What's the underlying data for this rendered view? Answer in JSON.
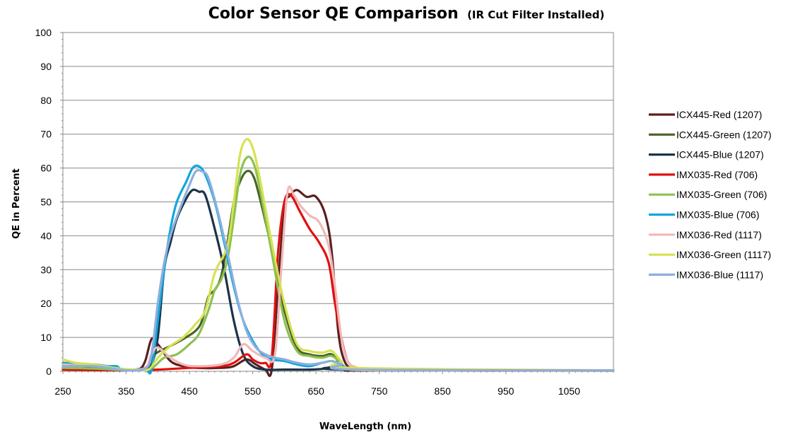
{
  "chart_data": {
    "type": "line",
    "title": "Color Sensor QE Comparison",
    "subtitle": "(IR Cut Filter Installed)",
    "xlabel": "WaveLength  (nm)",
    "ylabel": "QE in Percent",
    "xlim": [
      250,
      1120
    ],
    "ylim": [
      0,
      100
    ],
    "x_ticks": [
      250,
      350,
      450,
      550,
      650,
      750,
      850,
      950,
      1050
    ],
    "y_ticks": [
      0,
      10,
      20,
      30,
      40,
      50,
      60,
      70,
      80,
      90,
      100
    ],
    "grid": "horizontal",
    "legend_position": "right",
    "series": [
      {
        "name": "ICX445-Red (1207)",
        "color": "#5a1f1f",
        "points": [
          [
            250,
            1
          ],
          [
            300,
            0.5
          ],
          [
            350,
            0.3
          ],
          [
            370,
            0.5
          ],
          [
            380,
            3
          ],
          [
            390,
            9.5
          ],
          [
            400,
            8
          ],
          [
            420,
            3
          ],
          [
            440,
            1.5
          ],
          [
            460,
            1
          ],
          [
            500,
            1
          ],
          [
            520,
            1.5
          ],
          [
            540,
            3.5
          ],
          [
            555,
            2
          ],
          [
            570,
            0.5
          ],
          [
            580,
            0.5
          ],
          [
            590,
            25
          ],
          [
            600,
            48
          ],
          [
            610,
            52
          ],
          [
            620,
            53.5
          ],
          [
            635,
            51.5
          ],
          [
            650,
            51.5
          ],
          [
            665,
            46
          ],
          [
            675,
            35
          ],
          [
            685,
            12
          ],
          [
            695,
            3
          ],
          [
            710,
            0.5
          ],
          [
            730,
            0.2
          ],
          [
            1120,
            0.2
          ]
        ]
      },
      {
        "name": "ICX445-Green (1207)",
        "color": "#4a6327",
        "points": [
          [
            250,
            0.5
          ],
          [
            350,
            0.3
          ],
          [
            380,
            1
          ],
          [
            395,
            5
          ],
          [
            420,
            7.5
          ],
          [
            440,
            9.5
          ],
          [
            460,
            12
          ],
          [
            470,
            15
          ],
          [
            480,
            22
          ],
          [
            490,
            24
          ],
          [
            500,
            28
          ],
          [
            510,
            38
          ],
          [
            520,
            50
          ],
          [
            530,
            56
          ],
          [
            540,
            59
          ],
          [
            550,
            58
          ],
          [
            560,
            52
          ],
          [
            580,
            36
          ],
          [
            600,
            18
          ],
          [
            620,
            7
          ],
          [
            640,
            5
          ],
          [
            660,
            4.5
          ],
          [
            675,
            5
          ],
          [
            690,
            2
          ],
          [
            710,
            0.5
          ],
          [
            1120,
            0.2
          ]
        ]
      },
      {
        "name": "ICX445-Blue (1207)",
        "color": "#1c3349",
        "points": [
          [
            250,
            1
          ],
          [
            300,
            1
          ],
          [
            350,
            0.3
          ],
          [
            380,
            1
          ],
          [
            390,
            2
          ],
          [
            400,
            10
          ],
          [
            410,
            30
          ],
          [
            420,
            38
          ],
          [
            430,
            45
          ],
          [
            445,
            51
          ],
          [
            455,
            53.5
          ],
          [
            465,
            53
          ],
          [
            475,
            52
          ],
          [
            490,
            42
          ],
          [
            505,
            30
          ],
          [
            520,
            15
          ],
          [
            535,
            5
          ],
          [
            550,
            1.5
          ],
          [
            570,
            0.5
          ],
          [
            600,
            0.5
          ],
          [
            640,
            0.5
          ],
          [
            660,
            0.7
          ],
          [
            675,
            1.2
          ],
          [
            700,
            0.5
          ],
          [
            1120,
            0.2
          ]
        ]
      },
      {
        "name": "IMX035-Red (706)",
        "color": "#e01010",
        "points": [
          [
            250,
            0.5
          ],
          [
            350,
            0.3
          ],
          [
            400,
            0.5
          ],
          [
            450,
            1
          ],
          [
            500,
            1.5
          ],
          [
            520,
            2.5
          ],
          [
            540,
            5
          ],
          [
            550,
            3.5
          ],
          [
            560,
            2.5
          ],
          [
            570,
            2.5
          ],
          [
            580,
            4
          ],
          [
            590,
            35
          ],
          [
            600,
            50
          ],
          [
            610,
            52
          ],
          [
            625,
            47
          ],
          [
            640,
            42
          ],
          [
            655,
            38
          ],
          [
            670,
            32
          ],
          [
            680,
            20
          ],
          [
            690,
            10
          ],
          [
            700,
            3
          ],
          [
            715,
            1
          ],
          [
            740,
            0.3
          ],
          [
            1120,
            0.2
          ]
        ]
      },
      {
        "name": "IMX035-Green (706)",
        "color": "#8cc152",
        "points": [
          [
            250,
            1
          ],
          [
            300,
            0.8
          ],
          [
            350,
            0.3
          ],
          [
            385,
            0.5
          ],
          [
            395,
            1.5
          ],
          [
            410,
            4
          ],
          [
            430,
            5
          ],
          [
            450,
            8
          ],
          [
            465,
            11
          ],
          [
            480,
            18
          ],
          [
            490,
            24
          ],
          [
            500,
            27
          ],
          [
            510,
            33
          ],
          [
            520,
            45
          ],
          [
            530,
            58
          ],
          [
            540,
            63
          ],
          [
            550,
            62
          ],
          [
            560,
            55
          ],
          [
            580,
            35
          ],
          [
            600,
            15
          ],
          [
            620,
            6
          ],
          [
            640,
            4.5
          ],
          [
            660,
            4
          ],
          [
            675,
            4.5
          ],
          [
            690,
            2.5
          ],
          [
            710,
            0.5
          ],
          [
            1120,
            0.2
          ]
        ]
      },
      {
        "name": "IMX035-Blue (706)",
        "color": "#14a6dd",
        "points": [
          [
            250,
            2.5
          ],
          [
            300,
            2
          ],
          [
            320,
            1.5
          ],
          [
            335,
            1.5
          ],
          [
            345,
            0.5
          ],
          [
            380,
            0.3
          ],
          [
            390,
            0.5
          ],
          [
            400,
            15
          ],
          [
            410,
            30
          ],
          [
            420,
            42
          ],
          [
            430,
            50
          ],
          [
            445,
            56
          ],
          [
            455,
            60
          ],
          [
            465,
            60.5
          ],
          [
            475,
            58
          ],
          [
            490,
            50
          ],
          [
            505,
            38
          ],
          [
            520,
            25
          ],
          [
            535,
            15
          ],
          [
            550,
            9
          ],
          [
            565,
            5
          ],
          [
            580,
            3.5
          ],
          [
            600,
            3
          ],
          [
            620,
            2
          ],
          [
            640,
            1.5
          ],
          [
            660,
            2.5
          ],
          [
            675,
            3
          ],
          [
            690,
            2
          ],
          [
            710,
            0.5
          ],
          [
            800,
            0.3
          ],
          [
            810,
            0.6
          ],
          [
            820,
            0.3
          ],
          [
            1120,
            0.3
          ]
        ]
      },
      {
        "name": "IMX036-Red (1117)",
        "color": "#f0b8b8",
        "points": [
          [
            250,
            2
          ],
          [
            300,
            1.5
          ],
          [
            330,
            1
          ],
          [
            350,
            0.5
          ],
          [
            380,
            1
          ],
          [
            390,
            5
          ],
          [
            400,
            7
          ],
          [
            420,
            4
          ],
          [
            440,
            2
          ],
          [
            460,
            1.5
          ],
          [
            500,
            2
          ],
          [
            520,
            4
          ],
          [
            535,
            8
          ],
          [
            550,
            6
          ],
          [
            570,
            4
          ],
          [
            585,
            5
          ],
          [
            595,
            30
          ],
          [
            605,
            53
          ],
          [
            615,
            52
          ],
          [
            625,
            49
          ],
          [
            640,
            46
          ],
          [
            655,
            44
          ],
          [
            670,
            37
          ],
          [
            680,
            25
          ],
          [
            690,
            10
          ],
          [
            700,
            3
          ],
          [
            715,
            1
          ],
          [
            740,
            0.3
          ],
          [
            1120,
            0.2
          ]
        ]
      },
      {
        "name": "IMX036-Green (1117)",
        "color": "#d6e251",
        "points": [
          [
            250,
            3.5
          ],
          [
            270,
            2.5
          ],
          [
            300,
            2
          ],
          [
            330,
            1
          ],
          [
            360,
            0.5
          ],
          [
            385,
            0.5
          ],
          [
            400,
            4
          ],
          [
            420,
            7.5
          ],
          [
            440,
            10
          ],
          [
            460,
            14
          ],
          [
            475,
            18
          ],
          [
            490,
            29
          ],
          [
            510,
            37
          ],
          [
            520,
            50
          ],
          [
            530,
            64
          ],
          [
            540,
            68.5
          ],
          [
            550,
            66
          ],
          [
            560,
            58
          ],
          [
            580,
            38
          ],
          [
            600,
            20
          ],
          [
            620,
            8
          ],
          [
            640,
            6
          ],
          [
            660,
            5.5
          ],
          [
            675,
            6
          ],
          [
            690,
            3
          ],
          [
            710,
            1
          ],
          [
            1120,
            0.3
          ]
        ]
      },
      {
        "name": "IMX036-Blue (1117)",
        "color": "#8cb0dc",
        "points": [
          [
            250,
            1.5
          ],
          [
            300,
            1.5
          ],
          [
            350,
            0.3
          ],
          [
            380,
            0.8
          ],
          [
            390,
            5
          ],
          [
            400,
            20
          ],
          [
            410,
            32
          ],
          [
            420,
            40
          ],
          [
            435,
            48
          ],
          [
            450,
            55
          ],
          [
            460,
            59
          ],
          [
            470,
            59
          ],
          [
            480,
            57
          ],
          [
            495,
            47
          ],
          [
            510,
            35
          ],
          [
            525,
            22
          ],
          [
            540,
            12
          ],
          [
            555,
            7
          ],
          [
            570,
            5
          ],
          [
            585,
            4
          ],
          [
            600,
            3.5
          ],
          [
            620,
            2.5
          ],
          [
            640,
            2
          ],
          [
            660,
            2.5
          ],
          [
            675,
            3
          ],
          [
            690,
            2
          ],
          [
            710,
            0.5
          ],
          [
            1120,
            0.3
          ]
        ]
      }
    ]
  }
}
